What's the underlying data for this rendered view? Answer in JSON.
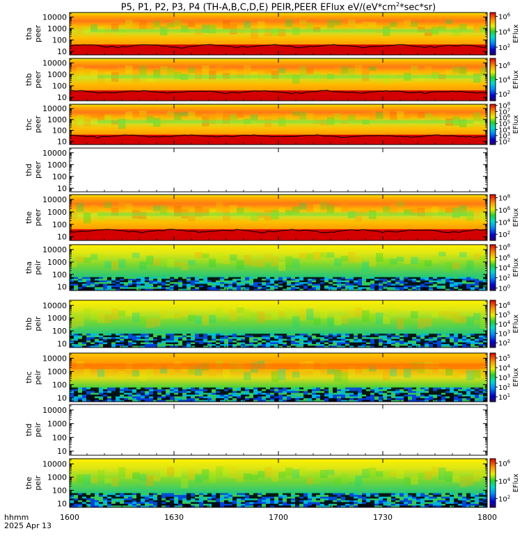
{
  "title": {
    "prefix": "P5, P1, P2, P3, P4 (TH-A,B,C,D,E) PEIR,PEER EFlux eV/(eV*cm",
    "sup": "2",
    "suffix": "*sec*sr)"
  },
  "footer": {
    "format_label": "hhmm",
    "date_label": "2025 Apr 13"
  },
  "colorbar_label": "EFlux",
  "chart_data": {
    "type": "heatmap",
    "x_ticks": [
      "1600",
      "1630",
      "1700",
      "1730",
      "1800"
    ],
    "xlim": [
      "16:00",
      "18:00"
    ],
    "y_scale": "log",
    "y_ticks": [
      "10",
      "100",
      "1000",
      "10000"
    ],
    "panels": [
      {
        "probe": "tha",
        "species": "peer",
        "ylim": [
          5,
          25000
        ],
        "has_data": true,
        "colorbar_ticks": [
          {
            "base": "10",
            "exp": "2"
          },
          {
            "base": "10",
            "exp": "4"
          },
          {
            "base": "10",
            "exp": "6"
          }
        ],
        "cb_exp_range": [
          1,
          6.5
        ],
        "spacecraft_potential": true
      },
      {
        "probe": "thb",
        "species": "peer",
        "ylim": [
          5,
          25000
        ],
        "has_data": true,
        "colorbar_ticks": [
          {
            "base": "10",
            "exp": "2"
          },
          {
            "base": "10",
            "exp": "4"
          },
          {
            "base": "10",
            "exp": "6"
          }
        ],
        "cb_exp_range": [
          1,
          7
        ],
        "spacecraft_potential": true
      },
      {
        "probe": "thc",
        "species": "peer",
        "ylim": [
          5,
          25000
        ],
        "has_data": true,
        "colorbar_ticks": [
          {
            "base": "10",
            "exp": "2"
          },
          {
            "base": "10",
            "exp": "3"
          },
          {
            "base": "10",
            "exp": "4"
          },
          {
            "base": "10",
            "exp": "5"
          },
          {
            "base": "10",
            "exp": "6"
          },
          {
            "base": "10",
            "exp": "7"
          },
          {
            "base": "10",
            "exp": "8"
          }
        ],
        "cb_exp_range": [
          1.5,
          8.2
        ],
        "spacecraft_potential": true
      },
      {
        "probe": "thd",
        "species": "peer",
        "ylim": [
          5,
          25000
        ],
        "has_data": false,
        "colorbar_ticks": [],
        "cb_exp_range": [
          0,
          1
        ],
        "spacecraft_potential": false
      },
      {
        "probe": "the",
        "species": "peer",
        "ylim": [
          5,
          25000
        ],
        "has_data": true,
        "colorbar_ticks": [
          {
            "base": "10",
            "exp": "2"
          },
          {
            "base": "10",
            "exp": "4"
          },
          {
            "base": "10",
            "exp": "6"
          },
          {
            "base": "10",
            "exp": "8"
          }
        ],
        "cb_exp_range": [
          1,
          8.5
        ],
        "spacecraft_potential": true
      },
      {
        "probe": "tha",
        "species": "peir",
        "ylim": [
          5,
          25000
        ],
        "has_data": true,
        "colorbar_ticks": [
          {
            "base": "10",
            "exp": "0"
          },
          {
            "base": "10",
            "exp": "2"
          },
          {
            "base": "10",
            "exp": "4"
          },
          {
            "base": "10",
            "exp": "6"
          },
          {
            "base": "10",
            "exp": "8"
          }
        ],
        "cb_exp_range": [
          -0.5,
          8.5
        ],
        "spacecraft_potential": false
      },
      {
        "probe": "thb",
        "species": "peir",
        "ylim": [
          5,
          25000
        ],
        "has_data": true,
        "colorbar_ticks": [
          {
            "base": "10",
            "exp": "2"
          },
          {
            "base": "10",
            "exp": "3"
          },
          {
            "base": "10",
            "exp": "4"
          },
          {
            "base": "10",
            "exp": "5"
          },
          {
            "base": "10",
            "exp": "6"
          }
        ],
        "cb_exp_range": [
          1.5,
          6.5
        ],
        "spacecraft_potential": false
      },
      {
        "probe": "thc",
        "species": "peir",
        "ylim": [
          5,
          25000
        ],
        "has_data": true,
        "colorbar_ticks": [
          {
            "base": "10",
            "exp": "1"
          },
          {
            "base": "10",
            "exp": "2"
          },
          {
            "base": "10",
            "exp": "3"
          },
          {
            "base": "10",
            "exp": "4"
          },
          {
            "base": "10",
            "exp": "5"
          }
        ],
        "cb_exp_range": [
          0.5,
          5.5
        ],
        "spacecraft_potential": false
      },
      {
        "probe": "thd",
        "species": "peir",
        "ylim": [
          5,
          25000
        ],
        "has_data": false,
        "colorbar_ticks": [],
        "cb_exp_range": [
          0,
          1
        ],
        "spacecraft_potential": false
      },
      {
        "probe": "the",
        "species": "peir",
        "ylim": [
          5,
          25000
        ],
        "has_data": true,
        "colorbar_ticks": [
          {
            "base": "10",
            "exp": "2"
          },
          {
            "base": "10",
            "exp": "4"
          },
          {
            "base": "10",
            "exp": "6"
          }
        ],
        "cb_exp_range": [
          1,
          6.5
        ],
        "spacecraft_potential": false
      }
    ]
  }
}
